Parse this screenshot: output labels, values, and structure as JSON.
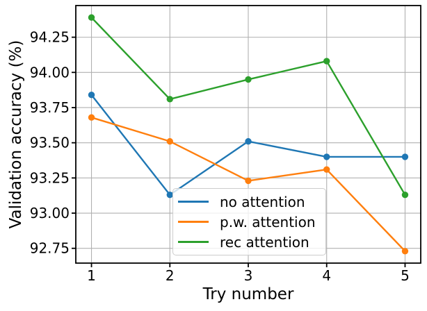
{
  "chart_data": {
    "type": "line",
    "title": "",
    "xlabel": "Try number",
    "ylabel": "Validation accuracy (%)",
    "x": [
      1,
      2,
      3,
      4,
      5
    ],
    "series": [
      {
        "name": "no attention",
        "color": "#1f77b4",
        "marker": "o",
        "values": [
          93.84,
          93.13,
          93.51,
          93.4,
          93.4
        ]
      },
      {
        "name": "p.w. attention",
        "color": "#ff7f0e",
        "marker": "o",
        "values": [
          93.68,
          93.51,
          93.23,
          93.31,
          92.73
        ]
      },
      {
        "name": "rec attention",
        "color": "#2ca02c",
        "marker": "o",
        "values": [
          94.39,
          93.81,
          93.95,
          94.08,
          93.13
        ]
      }
    ],
    "xlim": [
      0.8,
      5.2
    ],
    "ylim": [
      92.645,
      94.475
    ],
    "xticks": [
      1,
      2,
      3,
      4,
      5
    ],
    "xtick_labels": [
      "1",
      "2",
      "3",
      "4",
      "5"
    ],
    "yticks": [
      92.75,
      93.0,
      93.25,
      93.5,
      93.75,
      94.0,
      94.25
    ],
    "ytick_labels": [
      "92.75",
      "93.00",
      "93.25",
      "93.50",
      "93.75",
      "94.00",
      "94.25"
    ],
    "grid": true,
    "legend": {
      "position": "lower center",
      "entries": [
        "no attention",
        "p.w. attention",
        "rec attention"
      ]
    },
    "colors": {
      "grid": "#b0b0b0",
      "spine": "#000000",
      "tick_text": "#000000",
      "background": "#ffffff"
    }
  }
}
